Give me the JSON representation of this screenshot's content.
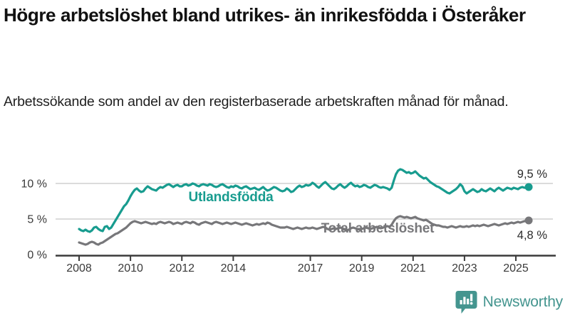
{
  "header": {
    "title": "Högre arbetslöshet bland utrikes- än inrikesfödda i Österåker",
    "subtitle": "Arbetssökande som andel av den registerbaserade arbetskraften månad för månad."
  },
  "chart_data": {
    "type": "line",
    "title": "Högre arbetslöshet bland utrikes- än inrikesfödda i Österåker",
    "unit": "%",
    "grid": "horizontal-only",
    "legend_position": "inline-labels-on-lines",
    "x_start": "2008-01",
    "x_end": "2025-07",
    "x_step": "month",
    "ylim": [
      0,
      12.5
    ],
    "y_axis": {
      "ticks": [
        {
          "label": "0 %",
          "value": 0
        },
        {
          "label": "5 %",
          "value": 5
        },
        {
          "label": "10 %",
          "value": 10
        }
      ]
    },
    "x_axis": {
      "ticks": [
        {
          "label": "2008",
          "year": 2008
        },
        {
          "label": "2010",
          "year": 2010
        },
        {
          "label": "2012",
          "year": 2012
        },
        {
          "label": "2014",
          "year": 2014
        },
        {
          "label": "2017",
          "year": 2017
        },
        {
          "label": "2019",
          "year": 2019
        },
        {
          "label": "2021",
          "year": 2021
        },
        {
          "label": "2023",
          "year": 2023
        },
        {
          "label": "2025",
          "year": 2025
        }
      ]
    },
    "series": [
      {
        "name": "Utlandsfödda",
        "color": "#189c8f",
        "end_label": "9,5 %",
        "end_value": 9.5,
        "values": [
          3.6,
          3.4,
          3.3,
          3.5,
          3.3,
          3.2,
          3.4,
          3.8,
          3.9,
          3.6,
          3.4,
          3.3,
          3.9,
          4.0,
          3.6,
          3.8,
          4.3,
          4.8,
          5.3,
          5.8,
          6.3,
          6.8,
          7.1,
          7.6,
          8.2,
          8.7,
          9.1,
          9.3,
          9.0,
          8.8,
          8.9,
          9.3,
          9.6,
          9.4,
          9.2,
          9.1,
          9.0,
          9.3,
          9.5,
          9.4,
          9.6,
          9.8,
          9.9,
          9.7,
          9.5,
          9.7,
          9.8,
          9.6,
          9.6,
          9.8,
          9.9,
          9.7,
          9.8,
          10.0,
          9.9,
          9.7,
          9.6,
          9.8,
          9.9,
          9.8,
          9.7,
          9.9,
          9.8,
          9.6,
          9.5,
          9.6,
          9.8,
          9.9,
          9.7,
          9.5,
          9.4,
          9.6,
          9.5,
          9.7,
          9.6,
          9.4,
          9.3,
          9.5,
          9.6,
          9.4,
          9.2,
          9.3,
          9.4,
          9.2,
          9.1,
          9.3,
          9.5,
          9.2,
          9.0,
          9.1,
          9.3,
          9.5,
          9.4,
          9.2,
          9.0,
          8.9,
          9.0,
          9.3,
          9.1,
          8.8,
          8.9,
          9.2,
          9.5,
          9.7,
          9.5,
          9.6,
          9.8,
          9.7,
          9.8,
          10.1,
          9.9,
          9.6,
          9.4,
          9.7,
          10.0,
          10.2,
          9.9,
          9.6,
          9.3,
          9.2,
          9.4,
          9.7,
          9.9,
          9.6,
          9.4,
          9.6,
          9.9,
          10.1,
          9.8,
          9.6,
          9.7,
          9.5,
          9.6,
          9.8,
          9.7,
          9.5,
          9.4,
          9.6,
          9.8,
          9.7,
          9.5,
          9.4,
          9.5,
          9.4,
          9.3,
          9.1,
          9.4,
          10.4,
          11.3,
          11.8,
          12.0,
          11.9,
          11.7,
          11.5,
          11.6,
          11.4,
          11.5,
          11.7,
          11.4,
          11.1,
          10.9,
          10.7,
          10.8,
          10.5,
          10.2,
          10.0,
          9.8,
          9.6,
          9.5,
          9.3,
          9.1,
          8.9,
          8.7,
          8.6,
          8.8,
          9.0,
          9.2,
          9.5,
          9.9,
          9.6,
          8.9,
          8.6,
          8.8,
          9.0,
          9.2,
          9.0,
          8.8,
          8.9,
          9.2,
          9.0,
          8.9,
          9.1,
          9.3,
          9.1,
          8.9,
          9.2,
          9.4,
          9.2,
          9.0,
          9.2,
          9.4,
          9.3,
          9.2,
          9.4,
          9.3,
          9.2,
          9.4,
          9.5,
          9.4,
          9.4,
          9.5
        ]
      },
      {
        "name": "Total arbetslöshet",
        "color": "#77777a",
        "end_label": "4,8 %",
        "end_value": 4.8,
        "values": [
          1.7,
          1.6,
          1.5,
          1.4,
          1.5,
          1.7,
          1.8,
          1.7,
          1.5,
          1.4,
          1.6,
          1.7,
          1.9,
          2.1,
          2.3,
          2.5,
          2.7,
          2.9,
          3.0,
          3.2,
          3.4,
          3.6,
          3.8,
          4.1,
          4.4,
          4.6,
          4.7,
          4.6,
          4.5,
          4.4,
          4.5,
          4.6,
          4.5,
          4.4,
          4.3,
          4.4,
          4.3,
          4.5,
          4.6,
          4.5,
          4.4,
          4.5,
          4.6,
          4.5,
          4.3,
          4.4,
          4.5,
          4.4,
          4.3,
          4.5,
          4.6,
          4.5,
          4.4,
          4.6,
          4.5,
          4.3,
          4.2,
          4.4,
          4.5,
          4.6,
          4.5,
          4.4,
          4.3,
          4.5,
          4.6,
          4.5,
          4.4,
          4.3,
          4.4,
          4.5,
          4.4,
          4.3,
          4.4,
          4.5,
          4.4,
          4.3,
          4.2,
          4.3,
          4.4,
          4.3,
          4.2,
          4.1,
          4.2,
          4.3,
          4.2,
          4.3,
          4.4,
          4.3,
          4.5,
          4.4,
          4.2,
          4.1,
          4.0,
          3.9,
          3.8,
          3.8,
          3.8,
          3.9,
          3.8,
          3.7,
          3.6,
          3.7,
          3.8,
          3.7,
          3.6,
          3.7,
          3.8,
          3.7,
          3.7,
          3.8,
          3.7,
          3.6,
          3.7,
          3.8,
          3.9,
          3.8,
          3.6,
          3.5,
          3.6,
          3.7,
          3.6,
          3.7,
          3.8,
          3.7,
          3.5,
          3.4,
          3.5,
          3.7,
          3.8,
          3.7,
          3.6,
          3.5,
          3.6,
          3.7,
          3.8,
          3.7,
          3.6,
          3.7,
          3.8,
          3.9,
          3.8,
          3.7,
          3.8,
          3.9,
          4.0,
          3.9,
          4.2,
          4.7,
          5.1,
          5.3,
          5.4,
          5.3,
          5.2,
          5.3,
          5.2,
          5.1,
          5.2,
          5.3,
          5.1,
          5.0,
          4.9,
          4.8,
          4.9,
          4.7,
          4.5,
          4.3,
          4.2,
          4.1,
          4.1,
          4.0,
          3.9,
          3.9,
          3.8,
          3.9,
          4.0,
          3.9,
          3.8,
          3.9,
          4.0,
          3.9,
          3.9,
          4.0,
          3.9,
          4.0,
          4.1,
          4.0,
          4.1,
          4.0,
          4.1,
          4.2,
          4.1,
          4.0,
          4.1,
          4.2,
          4.3,
          4.2,
          4.1,
          4.2,
          4.3,
          4.4,
          4.3,
          4.4,
          4.5,
          4.4,
          4.5,
          4.6,
          4.5,
          4.6,
          4.7,
          4.7,
          4.8
        ]
      }
    ]
  },
  "colors": {
    "accent_teal": "#189c8f",
    "line_gray": "#77777a",
    "gridline": "#cfcfcf",
    "axis": "#3a3a3a",
    "value_label": "#2b2b2b",
    "brand_teal": "#44958f"
  },
  "footer": {
    "brand": "Newsworthy",
    "brand_icon": "bar-chart-speech-bubble-icon"
  }
}
